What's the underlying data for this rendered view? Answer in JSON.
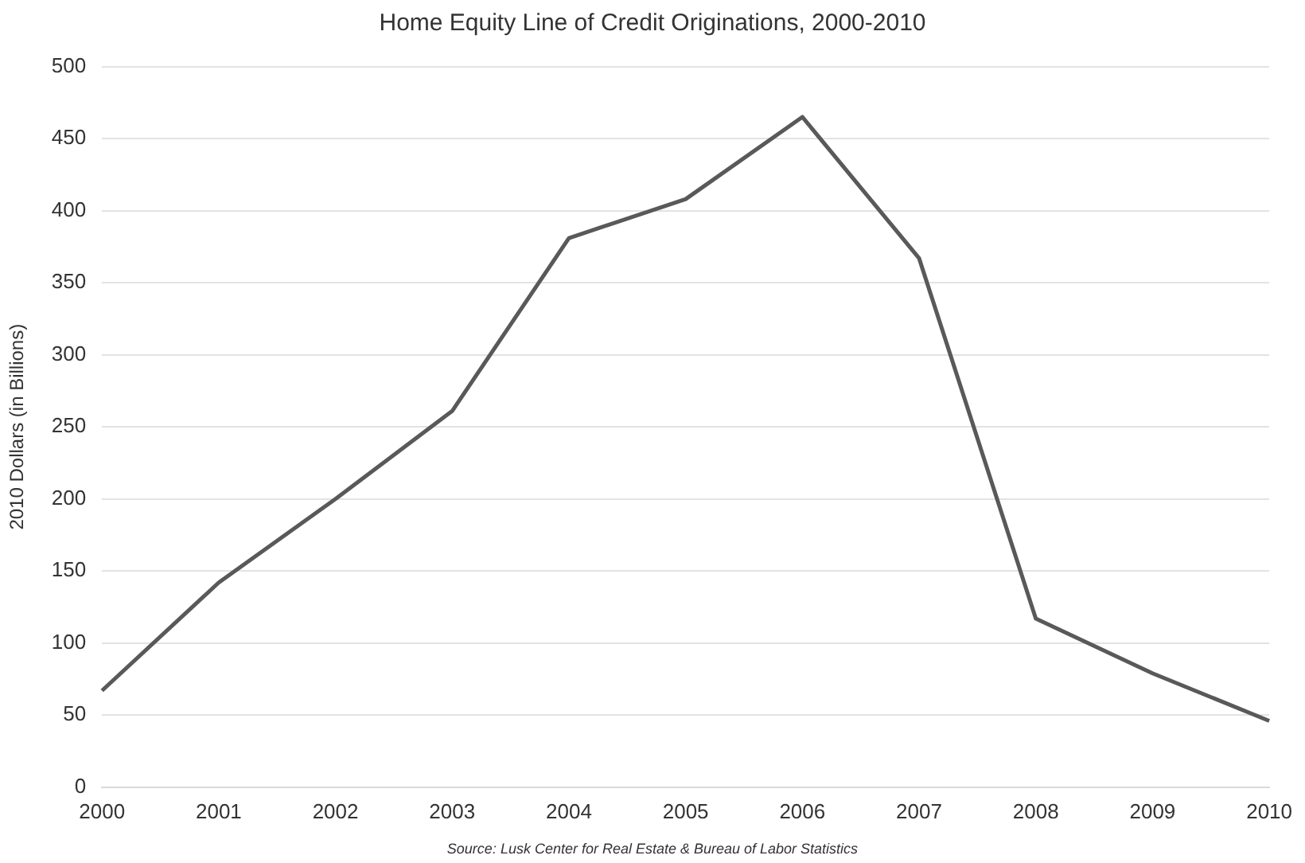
{
  "chart_data": {
    "type": "line",
    "title": "Home Equity Line of Credit Originations, 2000-2010",
    "ylabel": "2010 Dollars (in Billions)",
    "categories": [
      "2000",
      "2001",
      "2002",
      "2003",
      "2004",
      "2005",
      "2006",
      "2007",
      "2008",
      "2009",
      "2010"
    ],
    "series": [
      {
        "color": "#595959",
        "values": [
          67,
          142,
          200,
          261,
          381,
          408,
          465,
          367,
          117,
          79,
          46
        ]
      }
    ],
    "ylim": [
      0,
      500
    ],
    "yticks": [
      0,
      50,
      100,
      150,
      200,
      250,
      300,
      350,
      400,
      450,
      500
    ],
    "grid": "y",
    "legend": false,
    "marker": "none",
    "line_style": "solid",
    "annotations": [
      "Source: Lusk Center for Real Estate & Bureau of Labor Statistics"
    ]
  }
}
